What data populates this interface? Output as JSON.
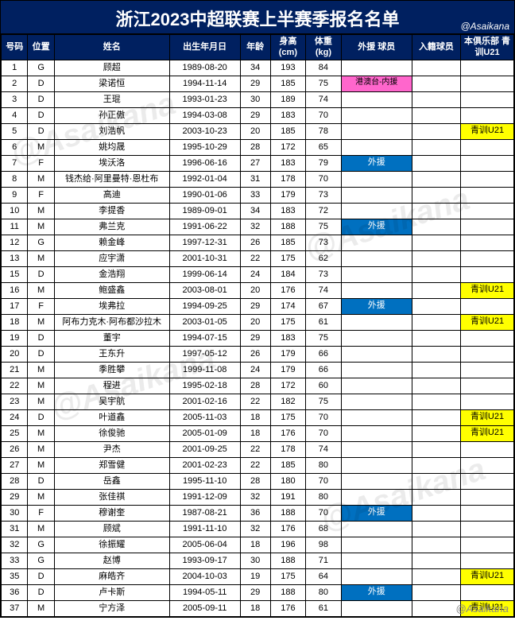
{
  "title": "浙江2023中超联赛上半赛季报名名单",
  "credit": "@Asaikana",
  "watermark": "@Asaikana",
  "header": {
    "num": "号码",
    "pos": "位置",
    "name": "姓名",
    "dob": "出生年月日",
    "age": "年龄",
    "height": "身高 (cm)",
    "weight": "体重 (kg)",
    "foreign": "外援 球员",
    "naturalized": "入籍球员",
    "u21": "本俱乐部 青训U21"
  },
  "colors": {
    "header_bg": "#002060",
    "header_text": "#ffffff",
    "foreign_bg": "#0070c0",
    "hkmotw_bg": "#ff66cc",
    "u21_bg": "#ffff00",
    "border": "#000000"
  },
  "tags": {
    "foreign": "外援",
    "hkmotw": "港澳台-内援",
    "u21": "青训U21"
  },
  "rows": [
    {
      "num": "1",
      "pos": "G",
      "name": "顾超",
      "dob": "1989-08-20",
      "age": "34",
      "h": "193",
      "w": "84",
      "foreign": "",
      "u21": ""
    },
    {
      "num": "2",
      "pos": "D",
      "name": "梁诺恒",
      "dob": "1994-11-14",
      "age": "29",
      "h": "185",
      "w": "75",
      "foreign": "hkmotw",
      "u21": ""
    },
    {
      "num": "3",
      "pos": "D",
      "name": "王琨",
      "dob": "1993-01-23",
      "age": "30",
      "h": "189",
      "w": "74",
      "foreign": "",
      "u21": ""
    },
    {
      "num": "4",
      "pos": "D",
      "name": "孙正傲",
      "dob": "1994-03-08",
      "age": "29",
      "h": "183",
      "w": "70",
      "foreign": "",
      "u21": ""
    },
    {
      "num": "5",
      "pos": "D",
      "name": "刘浩帆",
      "dob": "2003-10-23",
      "age": "20",
      "h": "185",
      "w": "78",
      "foreign": "",
      "u21": "u21"
    },
    {
      "num": "6",
      "pos": "M",
      "name": "姚均晟",
      "dob": "1995-10-29",
      "age": "28",
      "h": "172",
      "w": "65",
      "foreign": "",
      "u21": ""
    },
    {
      "num": "7",
      "pos": "F",
      "name": "埃沃洛",
      "dob": "1996-06-16",
      "age": "27",
      "h": "183",
      "w": "79",
      "foreign": "foreign",
      "u21": ""
    },
    {
      "num": "8",
      "pos": "M",
      "name": "钱杰给·阿里曼特·恩杜布",
      "dob": "1992-01-04",
      "age": "31",
      "h": "178",
      "w": "70",
      "foreign": "",
      "u21": ""
    },
    {
      "num": "9",
      "pos": "F",
      "name": "高迪",
      "dob": "1990-01-06",
      "age": "33",
      "h": "179",
      "w": "73",
      "foreign": "",
      "u21": ""
    },
    {
      "num": "10",
      "pos": "M",
      "name": "李提香",
      "dob": "1989-09-01",
      "age": "34",
      "h": "183",
      "w": "72",
      "foreign": "",
      "u21": ""
    },
    {
      "num": "11",
      "pos": "M",
      "name": "弗兰克",
      "dob": "1991-06-22",
      "age": "32",
      "h": "188",
      "w": "75",
      "foreign": "foreign",
      "u21": ""
    },
    {
      "num": "12",
      "pos": "G",
      "name": "赖金峰",
      "dob": "1997-12-31",
      "age": "26",
      "h": "185",
      "w": "73",
      "foreign": "",
      "u21": ""
    },
    {
      "num": "13",
      "pos": "M",
      "name": "应宇潇",
      "dob": "2001-10-31",
      "age": "22",
      "h": "175",
      "w": "62",
      "foreign": "",
      "u21": ""
    },
    {
      "num": "15",
      "pos": "D",
      "name": "金浩翔",
      "dob": "1999-06-14",
      "age": "24",
      "h": "184",
      "w": "73",
      "foreign": "",
      "u21": ""
    },
    {
      "num": "16",
      "pos": "M",
      "name": "鲍盛鑫",
      "dob": "2003-08-01",
      "age": "20",
      "h": "176",
      "w": "74",
      "foreign": "",
      "u21": "u21"
    },
    {
      "num": "17",
      "pos": "F",
      "name": "埃弗拉",
      "dob": "1994-09-25",
      "age": "29",
      "h": "174",
      "w": "67",
      "foreign": "foreign",
      "u21": ""
    },
    {
      "num": "18",
      "pos": "M",
      "name": "阿布力克木·阿布都沙拉木",
      "dob": "2003-01-05",
      "age": "20",
      "h": "175",
      "w": "61",
      "foreign": "",
      "u21": "u21"
    },
    {
      "num": "19",
      "pos": "D",
      "name": "董宇",
      "dob": "1994-07-15",
      "age": "29",
      "h": "183",
      "w": "75",
      "foreign": "",
      "u21": ""
    },
    {
      "num": "20",
      "pos": "D",
      "name": "王东升",
      "dob": "1997-05-12",
      "age": "26",
      "h": "179",
      "w": "66",
      "foreign": "",
      "u21": ""
    },
    {
      "num": "21",
      "pos": "M",
      "name": "季胜攀",
      "dob": "1999-11-08",
      "age": "24",
      "h": "179",
      "w": "66",
      "foreign": "",
      "u21": ""
    },
    {
      "num": "22",
      "pos": "M",
      "name": "程进",
      "dob": "1995-02-18",
      "age": "28",
      "h": "172",
      "w": "60",
      "foreign": "",
      "u21": ""
    },
    {
      "num": "23",
      "pos": "M",
      "name": "吴宇航",
      "dob": "2001-02-16",
      "age": "22",
      "h": "182",
      "w": "75",
      "foreign": "",
      "u21": ""
    },
    {
      "num": "24",
      "pos": "D",
      "name": "叶道鑫",
      "dob": "2005-11-03",
      "age": "18",
      "h": "175",
      "w": "70",
      "foreign": "",
      "u21": "u21"
    },
    {
      "num": "25",
      "pos": "M",
      "name": "徐俊驰",
      "dob": "2005-01-09",
      "age": "18",
      "h": "176",
      "w": "70",
      "foreign": "",
      "u21": "u21"
    },
    {
      "num": "26",
      "pos": "M",
      "name": "尹杰",
      "dob": "2001-09-25",
      "age": "22",
      "h": "178",
      "w": "74",
      "foreign": "",
      "u21": ""
    },
    {
      "num": "27",
      "pos": "M",
      "name": "郑雪健",
      "dob": "2001-02-23",
      "age": "22",
      "h": "185",
      "w": "80",
      "foreign": "",
      "u21": ""
    },
    {
      "num": "28",
      "pos": "D",
      "name": "岳鑫",
      "dob": "1995-11-10",
      "age": "28",
      "h": "180",
      "w": "70",
      "foreign": "",
      "u21": ""
    },
    {
      "num": "29",
      "pos": "M",
      "name": "张佳祺",
      "dob": "1991-12-09",
      "age": "32",
      "h": "191",
      "w": "80",
      "foreign": "",
      "u21": ""
    },
    {
      "num": "30",
      "pos": "F",
      "name": "穆谢奎",
      "dob": "1987-08-21",
      "age": "36",
      "h": "188",
      "w": "70",
      "foreign": "foreign",
      "u21": ""
    },
    {
      "num": "31",
      "pos": "M",
      "name": "顾斌",
      "dob": "1991-11-10",
      "age": "32",
      "h": "176",
      "w": "68",
      "foreign": "",
      "u21": ""
    },
    {
      "num": "32",
      "pos": "G",
      "name": "徐振耀",
      "dob": "2005-06-04",
      "age": "18",
      "h": "196",
      "w": "98",
      "foreign": "",
      "u21": ""
    },
    {
      "num": "33",
      "pos": "G",
      "name": "赵博",
      "dob": "1993-09-17",
      "age": "30",
      "h": "188",
      "w": "71",
      "foreign": "",
      "u21": ""
    },
    {
      "num": "35",
      "pos": "D",
      "name": "麻皓齐",
      "dob": "2004-10-03",
      "age": "19",
      "h": "175",
      "w": "64",
      "foreign": "",
      "u21": "u21"
    },
    {
      "num": "36",
      "pos": "D",
      "name": "卢卡斯",
      "dob": "1994-05-11",
      "age": "29",
      "h": "188",
      "w": "80",
      "foreign": "foreign",
      "u21": ""
    },
    {
      "num": "37",
      "pos": "M",
      "name": "宁方泽",
      "dob": "2005-09-11",
      "age": "18",
      "h": "176",
      "w": "61",
      "foreign": "",
      "u21": "u21"
    }
  ]
}
